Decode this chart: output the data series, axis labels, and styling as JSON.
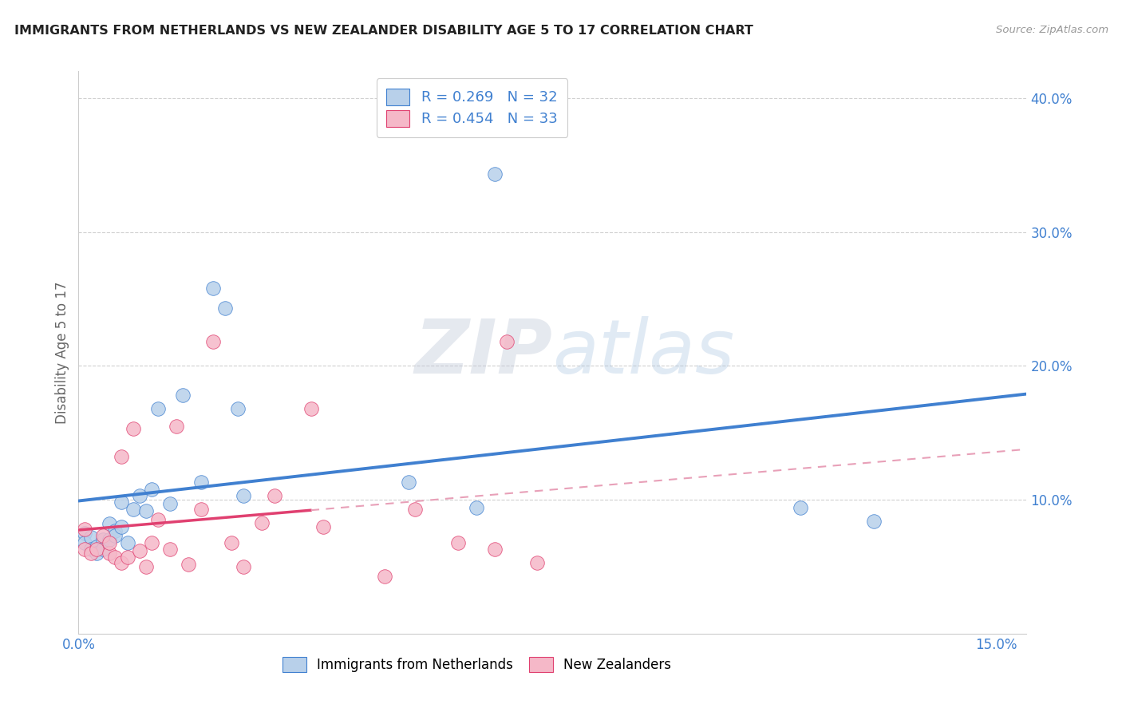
{
  "title": "IMMIGRANTS FROM NETHERLANDS VS NEW ZEALANDER DISABILITY AGE 5 TO 17 CORRELATION CHART",
  "source": "Source: ZipAtlas.com",
  "ylabel": "Disability Age 5 to 17",
  "xlim": [
    0.0,
    0.155
  ],
  "ylim": [
    0.0,
    0.42
  ],
  "xticks": [
    0.0,
    0.05,
    0.1,
    0.15
  ],
  "xtick_labels": [
    "0.0%",
    "",
    "",
    "15.0%"
  ],
  "yticks": [
    0.1,
    0.2,
    0.3,
    0.4
  ],
  "ytick_labels": [
    "10.0%",
    "20.0%",
    "30.0%",
    "40.0%"
  ],
  "legend1_label": "Immigrants from Netherlands",
  "legend2_label": "New Zealanders",
  "R1": "0.269",
  "N1": "32",
  "R2": "0.454",
  "N2": "33",
  "color1": "#b8d0ea",
  "color2": "#f5b8c8",
  "line1_color": "#4080d0",
  "line2_color": "#e04070",
  "line2_dash_color": "#e8a0b8",
  "scatter1_x": [
    0.001,
    0.001,
    0.002,
    0.002,
    0.003,
    0.003,
    0.004,
    0.004,
    0.005,
    0.005,
    0.006,
    0.006,
    0.007,
    0.007,
    0.008,
    0.009,
    0.01,
    0.011,
    0.012,
    0.013,
    0.015,
    0.017,
    0.02,
    0.022,
    0.024,
    0.026,
    0.027,
    0.054,
    0.065,
    0.068,
    0.118,
    0.13
  ],
  "scatter1_y": [
    0.075,
    0.068,
    0.072,
    0.063,
    0.065,
    0.06,
    0.07,
    0.063,
    0.082,
    0.07,
    0.077,
    0.073,
    0.098,
    0.08,
    0.068,
    0.093,
    0.103,
    0.092,
    0.108,
    0.168,
    0.097,
    0.178,
    0.113,
    0.258,
    0.243,
    0.168,
    0.103,
    0.113,
    0.094,
    0.343,
    0.094,
    0.084
  ],
  "scatter2_x": [
    0.001,
    0.001,
    0.002,
    0.003,
    0.004,
    0.005,
    0.005,
    0.006,
    0.007,
    0.007,
    0.008,
    0.009,
    0.01,
    0.011,
    0.012,
    0.013,
    0.015,
    0.016,
    0.018,
    0.02,
    0.022,
    0.025,
    0.027,
    0.03,
    0.032,
    0.038,
    0.04,
    0.05,
    0.055,
    0.062,
    0.068,
    0.07,
    0.075
  ],
  "scatter2_y": [
    0.078,
    0.063,
    0.06,
    0.063,
    0.073,
    0.06,
    0.068,
    0.057,
    0.132,
    0.053,
    0.057,
    0.153,
    0.062,
    0.05,
    0.068,
    0.085,
    0.063,
    0.155,
    0.052,
    0.093,
    0.218,
    0.068,
    0.05,
    0.083,
    0.103,
    0.168,
    0.08,
    0.043,
    0.093,
    0.068,
    0.063,
    0.218,
    0.053
  ],
  "watermark_zip": "ZIP",
  "watermark_atlas": "atlas",
  "background_color": "#ffffff",
  "grid_color": "#d0d0d0",
  "title_color": "#222222",
  "source_color": "#999999",
  "axis_label_color": "#666666",
  "tick_color": "#4080d0"
}
